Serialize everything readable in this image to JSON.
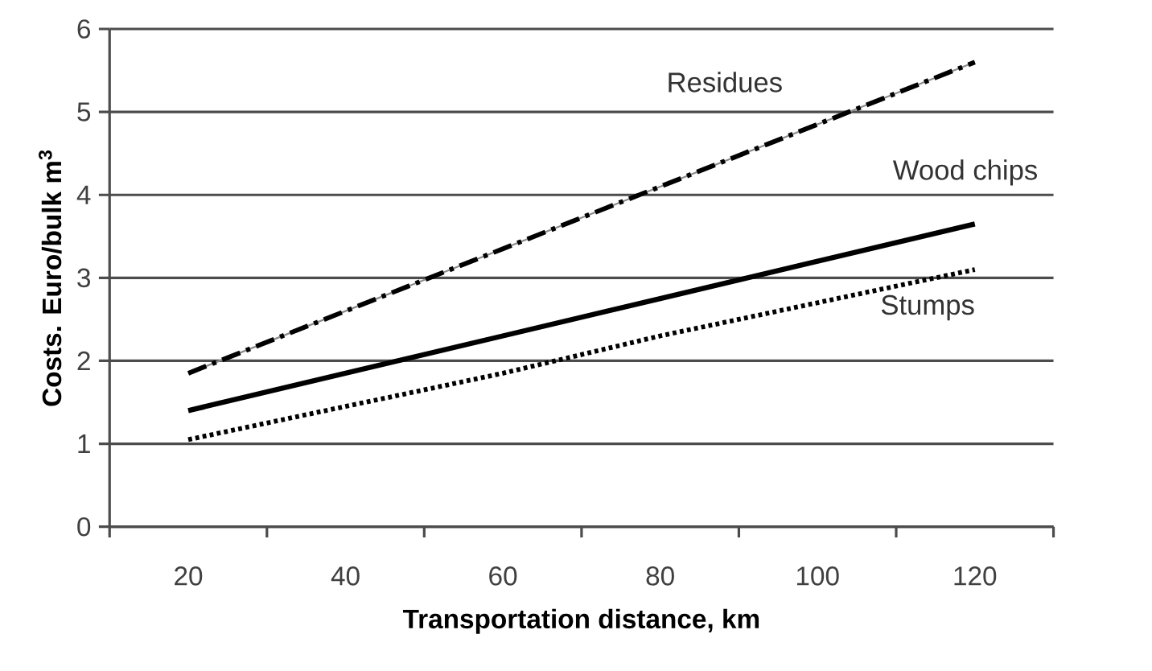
{
  "chart_data": {
    "type": "line",
    "xlabel": "Transportation distance, km",
    "ylabel": "Costs.  Euro/bulk m$^{3}$",
    "categories": [
      "20",
      "40",
      "60",
      "80",
      "100",
      "120"
    ],
    "series": [
      {
        "name": "Residues",
        "color": "#000000",
        "line_style": "dashed",
        "values": [
          1.85,
          2.6,
          3.35,
          4.1,
          4.85,
          5.6
        ]
      },
      {
        "name": "Wood chips",
        "color": "#000000",
        "line_style": "solid",
        "values": [
          1.4,
          1.85,
          2.3,
          2.75,
          3.2,
          3.65
        ]
      },
      {
        "name": "Stumps",
        "color": "#000000",
        "line_style": "dotted",
        "values": [
          1.05,
          1.45,
          1.85,
          2.3,
          2.7,
          3.1
        ]
      }
    ],
    "ylim": [
      0,
      6
    ],
    "yticks": [
      0,
      1,
      2,
      3,
      4,
      5,
      6
    ],
    "grid": "y",
    "legend": false,
    "marker": "none"
  }
}
